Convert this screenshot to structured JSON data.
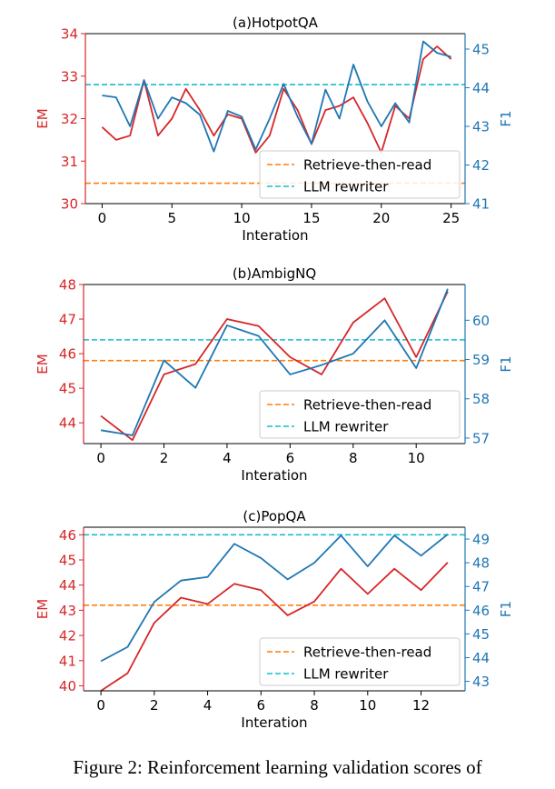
{
  "caption": "Figure 2: Reinforcement learning validation scores of",
  "colors": {
    "em": "#d62728",
    "f1": "#1f77b4",
    "retrieve": "#ff7f0e",
    "llm": "#17becf",
    "axis": "#000000"
  },
  "chart_data": [
    {
      "type": "line",
      "title": "(a)HotpotQA",
      "xlabel": "Interation",
      "ylabel_left": "EM",
      "ylabel_right": "F1",
      "xlim": [
        -1.2,
        26.0
      ],
      "xticks": [
        0,
        5,
        10,
        15,
        20,
        25
      ],
      "ylim_left": [
        30,
        34
      ],
      "yticks_left": [
        30,
        31,
        32,
        33,
        34
      ],
      "ylim_right": [
        41,
        45.4
      ],
      "yticks_right": [
        41,
        42,
        43,
        44,
        45
      ],
      "x": [
        0,
        1,
        2,
        3,
        4,
        5,
        6,
        7,
        8,
        9,
        10,
        11,
        12,
        13,
        14,
        15,
        16,
        17,
        18,
        19,
        20,
        21,
        22,
        23,
        24,
        25
      ],
      "series": [
        {
          "name": "EM",
          "axis": "left",
          "color_key": "em",
          "values": [
            31.8,
            31.5,
            31.6,
            32.9,
            31.6,
            32.0,
            32.7,
            32.2,
            31.6,
            32.1,
            32.0,
            31.2,
            31.6,
            32.7,
            32.2,
            31.4,
            32.2,
            32.3,
            32.5,
            31.9,
            31.2,
            32.3,
            32.0,
            33.4,
            33.7,
            33.4
          ]
        },
        {
          "name": "F1",
          "axis": "right",
          "color_key": "f1",
          "values": [
            43.8,
            43.75,
            43.0,
            44.2,
            43.2,
            43.75,
            43.6,
            43.3,
            42.35,
            43.4,
            43.25,
            42.4,
            43.2,
            44.1,
            43.25,
            42.55,
            43.95,
            43.2,
            44.6,
            43.65,
            43.0,
            43.6,
            43.1,
            45.2,
            44.9,
            44.8
          ]
        }
      ],
      "hlines": [
        {
          "label": "Retrieve-then-read",
          "axis": "left",
          "value": 30.48,
          "color_key": "retrieve"
        },
        {
          "label": "LLM rewriter",
          "axis": "left",
          "value": 32.8,
          "color_key": "llm"
        }
      ],
      "legend": "lower-right"
    },
    {
      "type": "line",
      "title": "(b)AmbigNQ",
      "xlabel": "Interation",
      "ylabel_left": "EM",
      "ylabel_right": "F1",
      "xlim": [
        -0.55,
        11.55
      ],
      "xticks": [
        0,
        2,
        4,
        6,
        8,
        10
      ],
      "ylim_left": [
        43.4,
        48.0
      ],
      "yticks_left": [
        44,
        45,
        46,
        47,
        48
      ],
      "ylim_right": [
        56.86,
        60.91
      ],
      "yticks_right": [
        57,
        58,
        59,
        60
      ],
      "x": [
        0,
        1,
        2,
        3,
        4,
        5,
        6,
        7,
        8,
        9,
        10,
        11
      ],
      "series": [
        {
          "name": "EM",
          "axis": "left",
          "color_key": "em",
          "values": [
            44.2,
            43.5,
            45.4,
            45.7,
            47.0,
            46.8,
            45.9,
            45.4,
            46.9,
            47.6,
            45.9,
            47.8
          ]
        },
        {
          "name": "F1",
          "axis": "right",
          "color_key": "f1",
          "values": [
            57.2,
            57.07,
            58.98,
            58.28,
            59.87,
            59.6,
            58.62,
            58.86,
            59.15,
            60.0,
            58.78,
            60.8
          ]
        }
      ],
      "hlines": [
        {
          "label": "Retrieve-then-read",
          "axis": "left",
          "value": 45.8,
          "color_key": "retrieve"
        },
        {
          "label": "LLM rewriter",
          "axis": "left",
          "value": 46.4,
          "color_key": "llm"
        }
      ],
      "legend": "lower-right"
    },
    {
      "type": "line",
      "title": "(c)PopQA",
      "xlabel": "Interation",
      "ylabel_left": "EM",
      "ylabel_right": "F1",
      "xlim": [
        -0.65,
        13.65
      ],
      "xticks": [
        0,
        2,
        4,
        6,
        8,
        10,
        12
      ],
      "ylim_left": [
        39.8,
        46.3
      ],
      "yticks_left": [
        40,
        41,
        42,
        43,
        44,
        45,
        46
      ],
      "ylim_right": [
        42.6,
        49.5
      ],
      "yticks_right": [
        43,
        44,
        45,
        46,
        47,
        48,
        49
      ],
      "x": [
        0,
        1,
        2,
        3,
        4,
        5,
        6,
        7,
        8,
        9,
        10,
        11,
        12,
        13
      ],
      "series": [
        {
          "name": "EM",
          "axis": "left",
          "color_key": "em",
          "values": [
            39.8,
            40.5,
            42.5,
            43.5,
            43.25,
            44.05,
            43.8,
            42.8,
            43.35,
            44.65,
            43.65,
            44.65,
            43.8,
            44.9
          ]
        },
        {
          "name": "F1",
          "axis": "right",
          "color_key": "f1",
          "values": [
            43.85,
            44.45,
            46.35,
            47.25,
            47.4,
            48.8,
            48.2,
            47.3,
            48.0,
            49.15,
            47.85,
            49.15,
            48.3,
            49.2
          ]
        }
      ],
      "hlines": [
        {
          "label": "Retrieve-then-read",
          "axis": "left",
          "value": 43.2,
          "color_key": "retrieve"
        },
        {
          "label": "LLM rewriter",
          "axis": "left",
          "value": 46.0,
          "color_key": "llm"
        }
      ],
      "legend": "lower-right"
    }
  ]
}
